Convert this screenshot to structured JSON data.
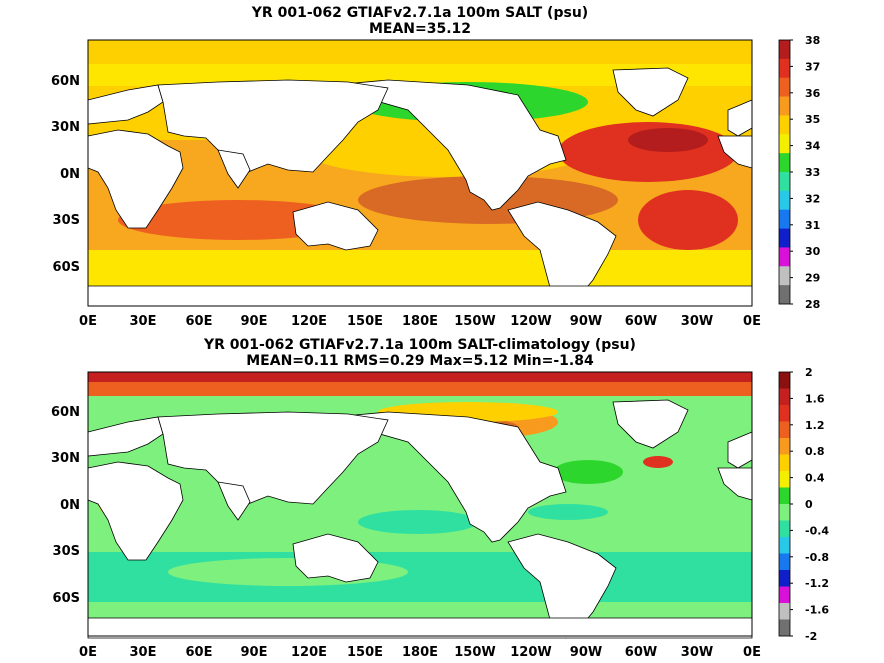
{
  "panels": [
    {
      "title_line1": "YR 001-062 GTIAFv2.7.1a 100m SALT (psu)",
      "title_line2": "MEAN=35.12",
      "colorbar_labels": [
        "38",
        "37",
        "36",
        "35",
        "34",
        "33",
        "32",
        "31",
        "30",
        "29",
        "28"
      ],
      "colorbar_colors": [
        "#b31d1d",
        "#e03020",
        "#ee6020",
        "#f79a1e",
        "#ffd000",
        "#f4ee00",
        "#2dd62d",
        "#30e0a0",
        "#28c8e8",
        "#1878f0",
        "#1020c8",
        "#d810d8",
        "#c0c0c0",
        "#707070"
      ]
    },
    {
      "title_line1": "YR 001-062 GTIAFv2.7.1a 100m SALT-climatology (psu)",
      "title_line2": "MEAN=0.11   RMS=0.29   Max=5.12   Min=-1.84",
      "colorbar_labels": [
        "2",
        "1.6",
        "1.2",
        "0.8",
        "0.4",
        "0",
        "-0.4",
        "-0.8",
        "-1.2",
        "-1.6",
        "-2"
      ],
      "colorbar_colors": [
        "#8b1010",
        "#c42020",
        "#e03020",
        "#ee6020",
        "#f79a1e",
        "#ffd000",
        "#f4ee00",
        "#2dd62d",
        "#7ef07e",
        "#30e0a0",
        "#28c8e8",
        "#1878f0",
        "#1020c8",
        "#d810d8",
        "#c0c0c0",
        "#707070"
      ]
    }
  ],
  "lat_labels": [
    "60N",
    "30N",
    "0N",
    "30S",
    "60S"
  ],
  "lon_labels": [
    "0E",
    "30E",
    "60E",
    "90E",
    "120E",
    "150E",
    "180E",
    "150W",
    "120W",
    "90W",
    "60W",
    "30W",
    "0E"
  ]
}
